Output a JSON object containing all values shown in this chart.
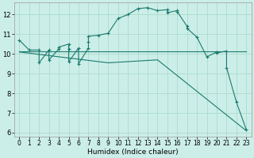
{
  "xlabel": "Humidex (Indice chaleur)",
  "bg_color": "#cceee8",
  "grid_color": "#aaddcc",
  "line_color": "#1a7a6e",
  "xlim": [
    -0.5,
    23.5
  ],
  "ylim": [
    5.8,
    12.6
  ],
  "yticks": [
    6,
    7,
    8,
    9,
    10,
    11,
    12
  ],
  "xticks": [
    0,
    1,
    2,
    3,
    4,
    5,
    6,
    7,
    8,
    9,
    10,
    11,
    12,
    13,
    14,
    15,
    16,
    17,
    18,
    19,
    20,
    21,
    22,
    23
  ],
  "series1_x": [
    0,
    1,
    2,
    2,
    3,
    3,
    4,
    4,
    5,
    5,
    5,
    6,
    6,
    7,
    7,
    7,
    8,
    9,
    10,
    11,
    12,
    13,
    14,
    15,
    15,
    16,
    16,
    17,
    17,
    18,
    19,
    20,
    20,
    21,
    21,
    22,
    23
  ],
  "series1_y": [
    10.7,
    10.2,
    10.2,
    9.55,
    10.2,
    9.7,
    10.25,
    10.35,
    10.5,
    10.25,
    9.6,
    10.3,
    9.5,
    10.3,
    10.6,
    10.9,
    10.95,
    11.05,
    11.8,
    12.0,
    12.3,
    12.35,
    12.2,
    12.25,
    12.1,
    12.2,
    12.15,
    11.4,
    11.3,
    10.85,
    9.85,
    10.1,
    10.05,
    10.15,
    9.3,
    7.55,
    6.15
  ],
  "series2_x": [
    0,
    9,
    14,
    23
  ],
  "series2_y": [
    10.1,
    9.55,
    9.7,
    6.1
  ],
  "series3_x": [
    0,
    9,
    14,
    18,
    23
  ],
  "series3_y": [
    10.15,
    10.15,
    10.15,
    10.15,
    10.15
  ]
}
